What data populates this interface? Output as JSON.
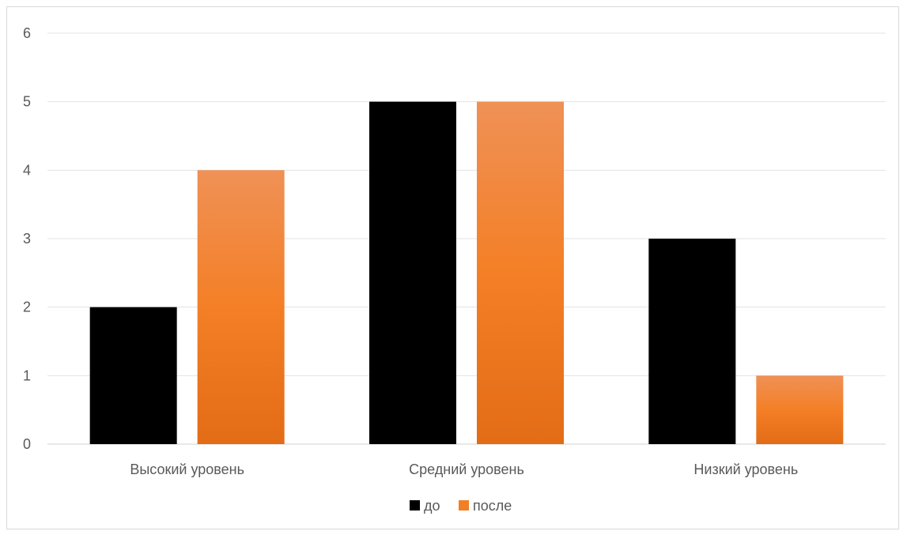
{
  "chart_data": {
    "type": "bar",
    "categories": [
      "Высокий уровень",
      "Средний уровень",
      "Низкий уровень"
    ],
    "series": [
      {
        "name": "до",
        "values": [
          2,
          5,
          3
        ],
        "color": "#000000"
      },
      {
        "name": "после",
        "values": [
          4,
          5,
          1
        ],
        "color": "#F07F26"
      }
    ],
    "ylim": [
      0,
      6
    ],
    "yticks": [
      0,
      1,
      2,
      3,
      4,
      5,
      6
    ],
    "grid": true,
    "legend": "bottom"
  }
}
